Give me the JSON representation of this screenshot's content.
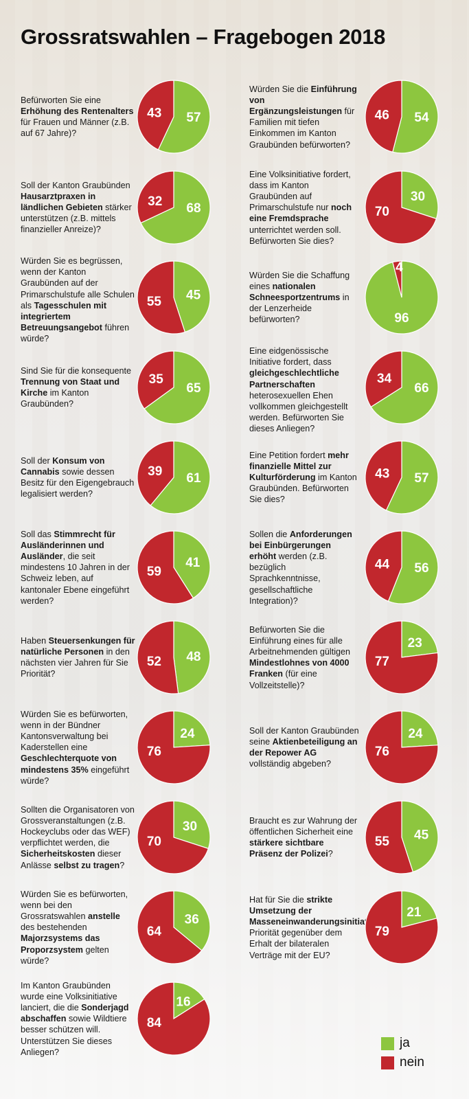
{
  "title": "Grossratswahlen – Fragebogen 2018",
  "colors": {
    "ja": "#8dc63f",
    "nein": "#c1272d"
  },
  "legend": {
    "ja": "ja",
    "nein": "nein"
  },
  "chart_data": {
    "type": "pie",
    "series_names": [
      "ja",
      "nein"
    ],
    "charts": [
      {
        "question": "Befürworten Sie eine Erhöhung des Rentenalters für Frauen und Männer (z.B. auf 67 Jahre)?",
        "bold": [
          "Erhöhung des Rentenalters"
        ],
        "ja": 57,
        "nein": 43
      },
      {
        "question": "Würden Sie die Einführung von Ergänzungsleistungen für Familien mit tiefen Einkommen im Kanton Graubünden befürworten?",
        "bold": [
          "Einführung von Ergänzungsleistungen"
        ],
        "ja": 54,
        "nein": 46
      },
      {
        "question": "Soll der Kanton Graubünden Hausarztpraxen in ländlichen Gebieten stärker unterstützen (z.B. mittels finanzieller Anreize)?",
        "bold": [
          "Hausarztpraxen in ländlichen Gebieten"
        ],
        "ja": 68,
        "nein": 32
      },
      {
        "question": "Eine Volksinitiative fordert, dass im Kanton Graubünden auf Primarschulstufe nur noch eine Fremdsprache unterrichtet werden soll. Befürworten Sie dies?",
        "bold": [
          "noch eine Fremdsprache"
        ],
        "ja": 30,
        "nein": 70
      },
      {
        "question": "Würden Sie es begrüssen, wenn der Kanton Graubünden auf der Primarschulstufe alle Schulen als Tagesschulen mit integriertem Betreuungsangebot führen würde?",
        "bold": [
          "Tagesschulen mit integriertem Betreuungsangebot"
        ],
        "ja": 45,
        "nein": 55
      },
      {
        "question": "Würden Sie die Schaffung eines nationalen Schneesportzentrums in der Lenzerheide befürworten?",
        "bold": [
          "nationalen Schneesportzentrums"
        ],
        "ja": 96,
        "nein": 4
      },
      {
        "question": "Sind Sie für die konsequente Trennung von Staat und Kirche im Kanton Graubünden?",
        "bold": [
          "Trennung von Staat und Kirche"
        ],
        "ja": 65,
        "nein": 35
      },
      {
        "question": "Eine eidgenössische Initiative fordert, dass gleichgeschlechtliche Partnerschaften heterosexuellen Ehen vollkommen gleichgestellt werden. Befürworten Sie dieses Anliegen?",
        "bold": [
          "gleichgeschlechtliche Partnerschaften"
        ],
        "ja": 66,
        "nein": 34
      },
      {
        "question": "Soll der Konsum von Cannabis sowie dessen Besitz für den Eigengebrauch legalisiert werden?",
        "bold": [
          "Konsum von Cannabis"
        ],
        "ja": 61,
        "nein": 39
      },
      {
        "question": "Eine Petition fordert mehr finanzielle Mittel zur Kulturförderung im Kanton Graubünden. Befürworten Sie dies?",
        "bold": [
          "mehr finanzielle Mittel zur Kulturförderung"
        ],
        "ja": 57,
        "nein": 43
      },
      {
        "question": "Soll das Stimmrecht für Ausländerinnen und Ausländer, die seit mindestens 10 Jahren in der Schweiz leben, auf kantonaler Ebene eingeführt werden?",
        "bold": [
          "Stimmrecht für Ausländerinnen und Ausländer"
        ],
        "ja": 41,
        "nein": 59
      },
      {
        "question": "Sollen die Anforderungen bei Einbürgerungen erhöht werden (z.B. bezüglich Sprachkenntnisse, gesellschaftliche Integration)?",
        "bold": [
          "Anforderungen bei Einbürgerungen erhöht"
        ],
        "ja": 56,
        "nein": 44
      },
      {
        "question": "Haben Steuersenkungen für natürliche Personen in den nächsten vier Jahren für Sie Priorität?",
        "bold": [
          "Steuersenkungen für natürliche Personen"
        ],
        "ja": 48,
        "nein": 52
      },
      {
        "question": "Befürworten Sie die Einführung eines für alle Arbeitnehmenden gültigen Mindestlohnes von 4000 Franken (für eine Vollzeitstelle)?",
        "bold": [
          "Mindestlohnes von 4000 Franken"
        ],
        "ja": 23,
        "nein": 77
      },
      {
        "question": "Würden Sie es befürworten, wenn in der Bündner Kantonsverwaltung bei Kaderstellen eine Geschlechterquote von mindestens 35% eingeführt würde?",
        "bold": [
          "Geschlechterquote von mindestens 35%"
        ],
        "ja": 24,
        "nein": 76
      },
      {
        "question": "Soll der Kanton Graubünden seine Aktienbeteiligung an der Repower AG vollständig abgeben?",
        "bold": [
          "Aktienbeteiligung an der Repower AG"
        ],
        "ja": 24,
        "nein": 76
      },
      {
        "question": "Sollten die Organisatoren von Grossveranstaltungen (z.B. Hockeyclubs oder das WEF) verpflichtet werden, die Sicherheitskosten dieser Anlässe selbst zu tragen?",
        "bold": [
          "Sicherheitskosten",
          "selbst zu tragen"
        ],
        "ja": 30,
        "nein": 70
      },
      {
        "question": "Braucht es zur Wahrung der öffentlichen Sicherheit eine stärkere sichtbare Präsenz der Polizei?",
        "bold": [
          "stärkere sichtbare Präsenz der Polizei"
        ],
        "ja": 45,
        "nein": 55
      },
      {
        "question": "Würden Sie es befürworten, wenn bei den Grossratswahlen anstelle des bestehenden Majorzsystems das Proporzsystem gelten würde?",
        "bold": [
          "anstelle",
          "Majorzsystems das Proporzsystem"
        ],
        "ja": 36,
        "nein": 64
      },
      {
        "question": "Hat für Sie die strikte Umsetzung der Masseneinwanderungsinitiative Priorität gegenüber dem Erhalt der bilateralen Verträge mit der EU?",
        "bold": [
          "strikte Umsetzung der Masseneinwanderungsinitiative"
        ],
        "ja": 21,
        "nein": 79
      },
      {
        "question": "Im Kanton Graubünden wurde eine Volksinitiative lanciert, die die Sonderjagd abschaffen sowie Wildtiere besser schützen will. Unterstützen Sie dieses Anliegen?",
        "bold": [
          "Sonderjagd abschaffen"
        ],
        "ja": 16,
        "nein": 84
      }
    ]
  }
}
